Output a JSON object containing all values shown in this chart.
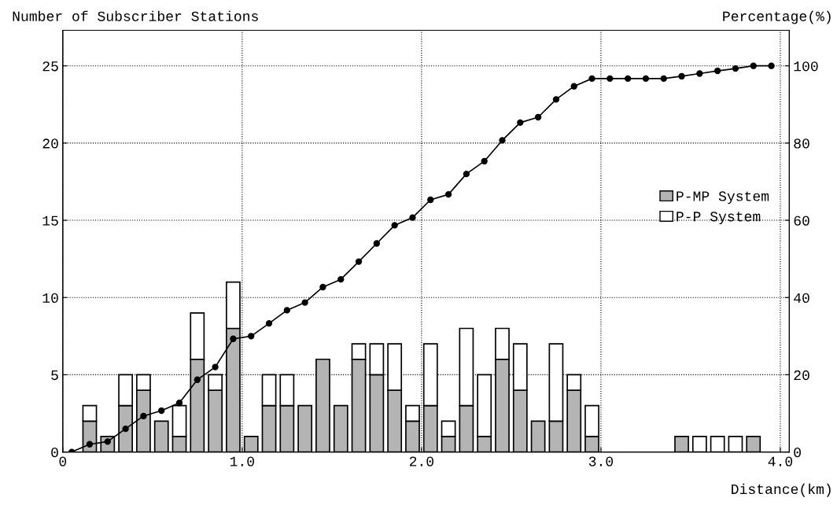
{
  "chart_data": {
    "type": "bar",
    "stacked": true,
    "ylabel": "Number of Subscriber Stations",
    "y2label": "Percentage(%)",
    "xlabel": "Distance(km)",
    "x": [
      0.15,
      0.25,
      0.35,
      0.45,
      0.55,
      0.65,
      0.75,
      0.85,
      0.95,
      1.05,
      1.15,
      1.25,
      1.35,
      1.45,
      1.55,
      1.65,
      1.75,
      1.85,
      1.95,
      2.05,
      2.15,
      2.25,
      2.35,
      2.45,
      2.55,
      2.65,
      2.75,
      2.85,
      2.95,
      3.05,
      3.15,
      3.25,
      3.35,
      3.45,
      3.55,
      3.65,
      3.75,
      3.85
    ],
    "series": [
      {
        "name": "P-MP System",
        "color": "#b4b4b4",
        "values": [
          2,
          1,
          3,
          4,
          2,
          1,
          6,
          4,
          8,
          1,
          3,
          3,
          3,
          6,
          3,
          6,
          5,
          4,
          2,
          3,
          1,
          3,
          1,
          6,
          4,
          2,
          2,
          4,
          1,
          0,
          0,
          0,
          0,
          1,
          0,
          0,
          0,
          1
        ]
      },
      {
        "name": "P-P System",
        "color": "#ffffff",
        "values": [
          1,
          0,
          2,
          1,
          0,
          2,
          3,
          1,
          3,
          0,
          2,
          2,
          0,
          0,
          0,
          1,
          2,
          3,
          1,
          4,
          1,
          5,
          4,
          2,
          3,
          0,
          5,
          1,
          2,
          0,
          0,
          0,
          0,
          0,
          1,
          1,
          1,
          0
        ]
      },
      {
        "type": "line",
        "axis": "y2",
        "color": "#000000",
        "marker": "circle",
        "line_style": "solid",
        "x": [
          0.05,
          0.15,
          0.25,
          0.35,
          0.45,
          0.55,
          0.65,
          0.75,
          0.85,
          0.95,
          1.05,
          1.15,
          1.25,
          1.35,
          1.45,
          1.55,
          1.65,
          1.75,
          1.85,
          1.95,
          2.05,
          2.15,
          2.25,
          2.35,
          2.45,
          2.55,
          2.65,
          2.75,
          2.85,
          2.95,
          3.05,
          3.15,
          3.25,
          3.35,
          3.45,
          3.55,
          3.65,
          3.75,
          3.85,
          3.95
        ],
        "values": [
          0,
          2.0,
          2.7,
          6.0,
          9.3,
          10.7,
          12.7,
          18.7,
          22.0,
          29.3,
          30.0,
          33.3,
          36.7,
          38.7,
          42.7,
          44.7,
          49.3,
          54.0,
          58.7,
          60.7,
          65.3,
          66.7,
          72.0,
          75.3,
          80.7,
          85.3,
          86.7,
          91.3,
          94.7,
          96.7,
          96.7,
          96.7,
          96.7,
          96.7,
          97.3,
          98.0,
          98.7,
          99.3,
          100,
          100
        ]
      }
    ],
    "xlim": [
      0,
      4.05
    ],
    "xticks": [
      0,
      {
        "value": 1,
        "label": "1.0"
      },
      {
        "value": 2,
        "label": "2.0"
      },
      {
        "value": 3,
        "label": "3.0"
      },
      {
        "value": 4,
        "label": "4.0"
      }
    ],
    "ylim": [
      0,
      27.3
    ],
    "yticks": [
      0,
      5,
      10,
      15,
      20,
      25
    ],
    "y2lim": [
      0,
      109.2
    ],
    "y2ticks": [
      0,
      20,
      40,
      60,
      80,
      100
    ],
    "grid": true,
    "legend": "right"
  }
}
